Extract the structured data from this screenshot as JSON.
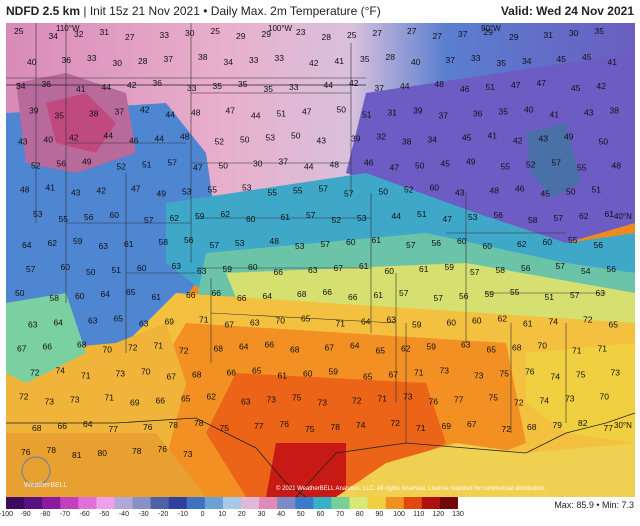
{
  "header": {
    "model": "NDFD 2.5 km",
    "init": "Init 15z 21 Nov 2021",
    "field": "Daily Max. 2m Temperature (°F)",
    "valid": "Valid: Wed 24 Nov 2021"
  },
  "map": {
    "lon_labels": [
      "110°W",
      "100°W",
      "90°W"
    ],
    "lat_labels": [
      "40°N",
      "30°N"
    ],
    "temperatures": [
      "25",
      "34",
      "32",
      "31",
      "27",
      "33",
      "30",
      "25",
      "29",
      "29",
      "23",
      "28",
      "25",
      "27",
      "27",
      "27",
      "37",
      "29",
      "29",
      "31",
      "30",
      "35",
      "40",
      "36",
      "33",
      "30",
      "28",
      "37",
      "38",
      "34",
      "33",
      "33",
      "42",
      "41",
      "35",
      "28",
      "40",
      "37",
      "33",
      "35",
      "34",
      "45",
      "45",
      "41",
      "34",
      "36",
      "41",
      "44",
      "42",
      "36",
      "33",
      "35",
      "35",
      "35",
      "33",
      "44",
      "42",
      "37",
      "44",
      "48",
      "46",
      "51",
      "47",
      "47",
      "45",
      "42",
      "39",
      "35",
      "38",
      "37",
      "42",
      "44",
      "48",
      "47",
      "44",
      "51",
      "47",
      "50",
      "51",
      "31",
      "39",
      "37",
      "36",
      "35",
      "40",
      "41",
      "43",
      "38",
      "43",
      "40",
      "42",
      "44",
      "46",
      "44",
      "48",
      "52",
      "50",
      "53",
      "50",
      "43",
      "39",
      "32",
      "38",
      "34",
      "45",
      "41",
      "42",
      "43",
      "49",
      "50",
      "52",
      "56",
      "49",
      "52",
      "51",
      "57",
      "47",
      "50",
      "30",
      "37",
      "44",
      "48",
      "46",
      "47",
      "50",
      "45",
      "49",
      "55",
      "52",
      "57",
      "55",
      "48",
      "48",
      "41",
      "43",
      "42",
      "47",
      "49",
      "53",
      "55",
      "53",
      "55",
      "55",
      "57",
      "57",
      "50",
      "52",
      "60",
      "43",
      "48",
      "46",
      "45",
      "50",
      "51",
      "53",
      "55",
      "56",
      "60",
      "57",
      "62",
      "59",
      "62",
      "60",
      "61",
      "57",
      "52",
      "53",
      "44",
      "51",
      "47",
      "53",
      "56",
      "58",
      "57",
      "62",
      "61",
      "64",
      "62",
      "59",
      "63",
      "61",
      "58",
      "56",
      "57",
      "53",
      "48",
      "53",
      "57",
      "60",
      "61",
      "57",
      "56",
      "60",
      "60",
      "62",
      "60",
      "55",
      "56",
      "57",
      "60",
      "50",
      "51",
      "60",
      "63",
      "63",
      "59",
      "60",
      "66",
      "63",
      "67",
      "61",
      "60",
      "61",
      "59",
      "57",
      "58",
      "56",
      "57",
      "54",
      "56",
      "50",
      "58",
      "60",
      "64",
      "65",
      "61",
      "66",
      "66",
      "66",
      "64",
      "68",
      "66",
      "66",
      "61",
      "57",
      "57",
      "56",
      "59",
      "55",
      "51",
      "57",
      "63",
      "63",
      "64",
      "63",
      "65",
      "63",
      "69",
      "71",
      "67",
      "63",
      "70",
      "65",
      "71",
      "64",
      "63",
      "59",
      "60",
      "60",
      "62",
      "61",
      "74",
      "72",
      "65",
      "67",
      "66",
      "68",
      "70",
      "72",
      "71",
      "72",
      "68",
      "64",
      "66",
      "68",
      "67",
      "64",
      "65",
      "62",
      "59",
      "63",
      "65",
      "68",
      "70",
      "71",
      "71",
      "72",
      "74",
      "71",
      "73",
      "70",
      "67",
      "68",
      "66",
      "65",
      "61",
      "60",
      "59",
      "65",
      "67",
      "71",
      "73",
      "73",
      "75",
      "76",
      "74",
      "75",
      "73",
      "72",
      "73",
      "73",
      "71",
      "69",
      "66",
      "65",
      "62",
      "63",
      "73",
      "75",
      "73",
      "72",
      "71",
      "73",
      "76",
      "77",
      "75",
      "72",
      "74",
      "73",
      "70",
      "68",
      "66",
      "64",
      "77",
      "76",
      "78",
      "78",
      "75",
      "77",
      "76",
      "75",
      "78",
      "74",
      "72",
      "71",
      "69",
      "67",
      "72",
      "68",
      "79",
      "82",
      "77",
      "76",
      "78",
      "81",
      "80",
      "78",
      "76",
      "73"
    ]
  },
  "footer": {
    "copyright": "© 2021 WeatherBELL Analytics, LLC. All rights reserved. License required for commercial distribution.",
    "stats": "Max: 85.9 • Min: 7.3",
    "logo_text": "WeatherBELL",
    "scale_ticks": [
      "-100",
      "-90",
      "-80",
      "-70",
      "-60",
      "-50",
      "-40",
      "-30",
      "-20",
      "-10",
      "0",
      "10",
      "20",
      "30",
      "40",
      "50",
      "60",
      "70",
      "80",
      "90",
      "100",
      "110",
      "120",
      "130"
    ],
    "scale_colors": [
      "#3b0a5a",
      "#5a1080",
      "#8a1aa0",
      "#c040c0",
      "#e070d8",
      "#f0a0e8",
      "#b0a8d8",
      "#8890c8",
      "#5060a8",
      "#3040a0",
      "#4070c0",
      "#6ea0d8",
      "#a8c8e8",
      "#e0b8d8",
      "#e08ab8",
      "#7c8ac8",
      "#3a7ac8",
      "#38b0c8",
      "#78d098",
      "#d8e878",
      "#f0d040",
      "#f09020",
      "#e04810",
      "#b01010",
      "#700808"
    ]
  }
}
